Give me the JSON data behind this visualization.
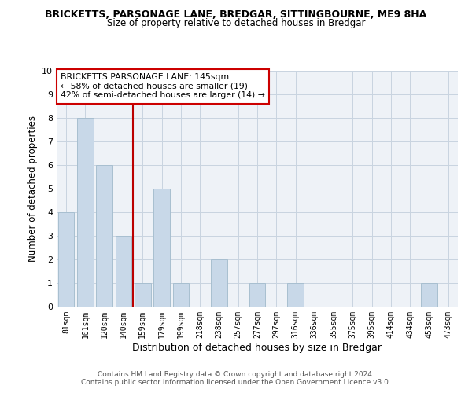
{
  "title": "BRICKETTS, PARSONAGE LANE, BREDGAR, SITTINGBOURNE, ME9 8HA",
  "subtitle": "Size of property relative to detached houses in Bredgar",
  "xlabel": "Distribution of detached houses by size in Bredgar",
  "ylabel": "Number of detached properties",
  "categories": [
    "81sqm",
    "101sqm",
    "120sqm",
    "140sqm",
    "159sqm",
    "179sqm",
    "199sqm",
    "218sqm",
    "238sqm",
    "257sqm",
    "277sqm",
    "297sqm",
    "316sqm",
    "336sqm",
    "355sqm",
    "375sqm",
    "395sqm",
    "414sqm",
    "434sqm",
    "453sqm",
    "473sqm"
  ],
  "values": [
    4,
    8,
    6,
    3,
    1,
    5,
    1,
    0,
    2,
    0,
    1,
    0,
    1,
    0,
    0,
    0,
    0,
    0,
    0,
    1,
    0
  ],
  "bar_color": "#c8d8e8",
  "bar_edge_color": "#a8bfd0",
  "vline_x": 3.5,
  "vline_color": "#bb0000",
  "ylim": [
    0,
    10
  ],
  "yticks": [
    0,
    1,
    2,
    3,
    4,
    5,
    6,
    7,
    8,
    9,
    10
  ],
  "annotation_title": "BRICKETTS PARSONAGE LANE: 145sqm",
  "annotation_line1": "← 58% of detached houses are smaller (19)",
  "annotation_line2": "42% of semi-detached houses are larger (14) →",
  "annotation_box_color": "#ffffff",
  "annotation_box_edge": "#cc0000",
  "footer1": "Contains HM Land Registry data © Crown copyright and database right 2024.",
  "footer2": "Contains public sector information licensed under the Open Government Licence v3.0.",
  "grid_color": "#c8d4e0",
  "background_color": "#eef2f7"
}
